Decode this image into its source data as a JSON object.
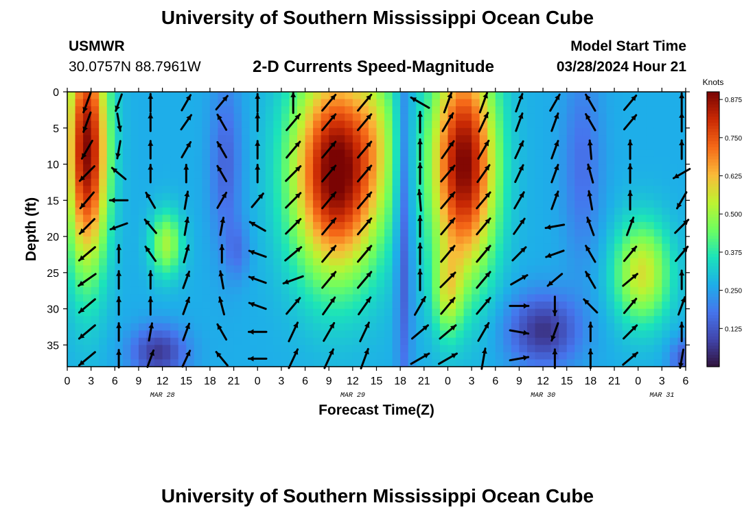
{
  "header": {
    "title": "University of Southern Mississippi Ocean Cube",
    "station": "USMWR",
    "coords": "30.0757N  88.7961W",
    "subtitle": "2-D Currents Speed-Magnitude",
    "model_start_label": "Model Start Time",
    "model_start_value": "03/28/2024 Hour 21"
  },
  "footer": {
    "title": "University of Southern Mississippi Ocean Cube"
  },
  "chart_data": {
    "type": "heatmap",
    "title": "2-D Currents Speed-Magnitude",
    "xlabel": "Forecast Time(Z)",
    "ylabel": "Depth (ft)",
    "x_unit": "hours from 00Z MAR 28",
    "xlim": [
      0,
      78
    ],
    "ylim": [
      0,
      38
    ],
    "y_inverted": true,
    "x_ticks": [
      0,
      3,
      6,
      9,
      12,
      15,
      18,
      21,
      24,
      27,
      30,
      33,
      36,
      39,
      42,
      45,
      48,
      51,
      54,
      57,
      60,
      63,
      66,
      69,
      72,
      75,
      78
    ],
    "x_tick_labels": [
      "0",
      "3",
      "6",
      "9",
      "12",
      "15",
      "18",
      "21",
      "0",
      "3",
      "6",
      "9",
      "12",
      "15",
      "18",
      "21",
      "0",
      "3",
      "6",
      "9",
      "12",
      "15",
      "18",
      "21",
      "0",
      "3",
      "6"
    ],
    "y_ticks": [
      0,
      5,
      10,
      15,
      20,
      25,
      30,
      35
    ],
    "y_tick_labels": [
      "0",
      "5",
      "10",
      "15",
      "20",
      "25",
      "30",
      "35"
    ],
    "date_labels": [
      {
        "text": "MAR 28",
        "x": 12
      },
      {
        "text": "MAR 29",
        "x": 36
      },
      {
        "text": "MAR 30",
        "x": 60
      },
      {
        "text": "MAR 31",
        "x": 75
      }
    ],
    "colorbar": {
      "title": "Knots",
      "min": 0,
      "max": 0.9,
      "ticks": [
        0.125,
        0.25,
        0.375,
        0.5,
        0.625,
        0.75,
        0.875
      ],
      "tick_labels": [
        "0.125",
        "0.250",
        "0.375",
        "0.500",
        "0.625",
        "0.750",
        "0.875"
      ],
      "colormap": "turbo"
    },
    "grid": false,
    "speed_model": {
      "description": "approximate speed field (knots) as sum of blobs over base",
      "base": 0.27,
      "blobs": [
        {
          "x": 2.5,
          "y": 8,
          "sx": 2.6,
          "sy": 16,
          "amp": 0.62
        },
        {
          "x": 12.5,
          "y": 21,
          "sx": 2.0,
          "sy": 4.5,
          "amp": 0.24
        },
        {
          "x": 11.5,
          "y": 36,
          "sx": 3.5,
          "sy": 3.5,
          "amp": -0.2
        },
        {
          "x": 20,
          "y": 10,
          "sx": 2.0,
          "sy": 12,
          "amp": -0.12
        },
        {
          "x": 21.5,
          "y": 22,
          "sx": 1.5,
          "sy": 4,
          "amp": -0.08
        },
        {
          "x": 34,
          "y": 11,
          "sx": 5.5,
          "sy": 14,
          "amp": 0.66
        },
        {
          "x": 39,
          "y": 5,
          "sx": 2.5,
          "sy": 10,
          "amp": 0.1
        },
        {
          "x": 42.5,
          "y": 18,
          "sx": 1.0,
          "sy": 25,
          "amp": -0.16
        },
        {
          "x": 50,
          "y": 10,
          "sx": 4.0,
          "sy": 15,
          "amp": 0.63
        },
        {
          "x": 48,
          "y": 28,
          "sx": 1.8,
          "sy": 6,
          "amp": 0.2
        },
        {
          "x": 60,
          "y": 33,
          "sx": 4.5,
          "sy": 5,
          "amp": -0.21
        },
        {
          "x": 65,
          "y": 10,
          "sx": 2.5,
          "sy": 14,
          "amp": -0.1
        },
        {
          "x": 72.5,
          "y": 25,
          "sx": 3.5,
          "sy": 7,
          "amp": 0.3
        },
        {
          "x": 78,
          "y": 37,
          "sx": 2.0,
          "sy": 3,
          "amp": -0.15
        }
      ]
    },
    "vectors_depths_ft": [
      1.5,
      4.2,
      8,
      11.3,
      15,
      18.6,
      22.4,
      26,
      29.6,
      33.2,
      36.9
    ],
    "vector_columns": [
      {
        "x": 2.5,
        "angles_deg": [
          200,
          200,
          210,
          225,
          220,
          225,
          230,
          235,
          230,
          230,
          230
        ],
        "len": 1.0
      },
      {
        "x": 6.5,
        "angles_deg": [
          200,
          170,
          190,
          310,
          270,
          250,
          0,
          0,
          0,
          0,
          0
        ],
        "len": 0.85
      },
      {
        "x": 10.5,
        "angles_deg": [
          0,
          0,
          0,
          0,
          330,
          320,
          325,
          0,
          0,
          10,
          20
        ],
        "len": 0.85
      },
      {
        "x": 15,
        "angles_deg": [
          30,
          35,
          30,
          0,
          10,
          10,
          15,
          20,
          20,
          20,
          25
        ],
        "len": 0.85
      },
      {
        "x": 19.5,
        "angles_deg": [
          40,
          330,
          330,
          330,
          30,
          10,
          0,
          350,
          345,
          330,
          320
        ],
        "len": 0.85
      },
      {
        "x": 24,
        "angles_deg": [
          0,
          0,
          0,
          0,
          40,
          300,
          290,
          290,
          290,
          270,
          270
        ],
        "len": 0.85
      },
      {
        "x": 28.5,
        "angles_deg": [
          0,
          40,
          40,
          45,
          45,
          45,
          50,
          250,
          40,
          25,
          25
        ],
        "len": 1.0
      },
      {
        "x": 33,
        "angles_deg": [
          40,
          40,
          40,
          40,
          40,
          40,
          40,
          40,
          35,
          30,
          25
        ],
        "len": 1.0
      },
      {
        "x": 37.5,
        "angles_deg": [
          40,
          40,
          40,
          40,
          40,
          40,
          40,
          40,
          35,
          25,
          20
        ],
        "len": 1.0
      },
      {
        "x": 44.5,
        "angles_deg": [
          300,
          0,
          0,
          0,
          355,
          0,
          0,
          0,
          30,
          50,
          60
        ],
        "len": 1.0
      },
      {
        "x": 48,
        "angles_deg": [
          20,
          30,
          35,
          40,
          40,
          40,
          40,
          45,
          40,
          50,
          60
        ],
        "len": 1.0
      },
      {
        "x": 52.5,
        "angles_deg": [
          20,
          25,
          30,
          35,
          40,
          40,
          40,
          40,
          40,
          30,
          10
        ],
        "len": 1.0
      },
      {
        "x": 57,
        "angles_deg": [
          20,
          20,
          25,
          25,
          30,
          35,
          45,
          60,
          90,
          100,
          80
        ],
        "len": 0.9
      },
      {
        "x": 61.5,
        "angles_deg": [
          30,
          20,
          20,
          20,
          20,
          260,
          250,
          230,
          180,
          200,
          0
        ],
        "len": 0.9
      },
      {
        "x": 66,
        "angles_deg": [
          330,
          330,
          355,
          345,
          350,
          340,
          330,
          330,
          315,
          0,
          0
        ],
        "len": 0.9
      },
      {
        "x": 71,
        "angles_deg": [
          40,
          40,
          0,
          0,
          0,
          20,
          40,
          50,
          40,
          45,
          50
        ],
        "len": 0.9
      },
      {
        "x": 77.5,
        "angles_deg": [
          0,
          0,
          0,
          240,
          210,
          45,
          40,
          0,
          20,
          0,
          190
        ],
        "len": 0.9
      }
    ]
  }
}
